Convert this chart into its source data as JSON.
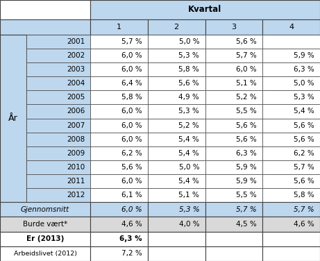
{
  "title": "Kvartal",
  "col_headers": [
    "1",
    "2",
    "3",
    "4"
  ],
  "years": [
    "2001",
    "2002",
    "2003",
    "2004",
    "2005",
    "2006",
    "2007",
    "2008",
    "2009",
    "2010",
    "2011",
    "2012"
  ],
  "data": [
    [
      "5,7 %",
      "5,0 %",
      "5,6 %",
      ""
    ],
    [
      "6,0 %",
      "5,3 %",
      "5,7 %",
      "5,9 %"
    ],
    [
      "6,0 %",
      "5,8 %",
      "6,0 %",
      "6,3 %"
    ],
    [
      "6,4 %",
      "5,6 %",
      "5,1 %",
      "5,0 %"
    ],
    [
      "5,8 %",
      "4,9 %",
      "5,2 %",
      "5,3 %"
    ],
    [
      "6,0 %",
      "5,3 %",
      "5,5 %",
      "5,4 %"
    ],
    [
      "6,0 %",
      "5,2 %",
      "5,6 %",
      "5,6 %"
    ],
    [
      "6,0 %",
      "5,4 %",
      "5,6 %",
      "5,6 %"
    ],
    [
      "6,2 %",
      "5,4 %",
      "6,3 %",
      "6,2 %"
    ],
    [
      "5,6 %",
      "5,0 %",
      "5,9 %",
      "5,7 %"
    ],
    [
      "6,0 %",
      "5,4 %",
      "5,9 %",
      "5,6 %"
    ],
    [
      "6,1 %",
      "5,1 %",
      "5,5 %",
      "5,8 %"
    ]
  ],
  "gjennomsnitt": [
    "6,0 %",
    "5,3 %",
    "5,7 %",
    "5,7 %"
  ],
  "burde_vaert": [
    "4,6 %",
    "4,0 %",
    "4,5 %",
    "4,6 %"
  ],
  "er_2013": [
    "6,3 %",
    "",
    "",
    ""
  ],
  "arbeidslivet_2012": [
    "7,2 %",
    "",
    "",
    ""
  ],
  "color_header": "#BDD7EE",
  "color_white": "#FFFFFF",
  "color_gjennomsnitt_bg": "#BDD7EE",
  "color_burde_vaert_bg": "#D9D9D9",
  "color_er_2013_bg": "#FFFFFF",
  "color_arbeidslivet_bg": "#FFFFFF",
  "border_color": "#404040",
  "text_color": "#000000",
  "fig_width": 4.61,
  "fig_height": 3.76,
  "dpi": 100
}
